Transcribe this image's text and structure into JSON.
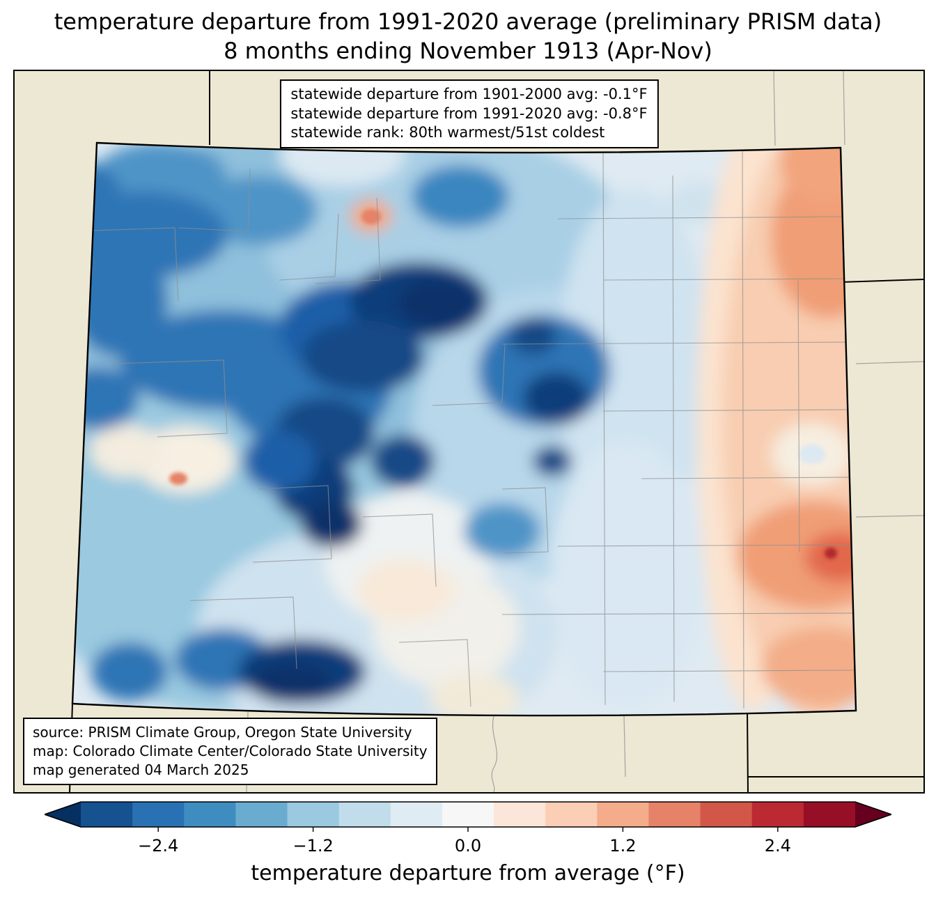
{
  "title": {
    "line1": "temperature departure from 1991-2020 average (preliminary PRISM data)",
    "line2": "8 months ending November 1913 (Apr-Nov)"
  },
  "stats_box": {
    "lines": [
      "statewide departure from 1901-2000 avg: -0.1°F",
      "statewide departure from 1991-2020 avg: -0.8°F",
      "statewide rank: 80th warmest/51st coldest"
    ]
  },
  "source_box": {
    "lines": [
      "source: PRISM Climate Group, Oregon State University",
      "map: Colorado Climate Center/Colorado State University",
      "map generated 04 March 2025"
    ]
  },
  "colorbar": {
    "label": "temperature departure from average (°F)",
    "range_f": [
      -3.0,
      3.0
    ],
    "tick_values": [
      -2.4,
      -1.2,
      0.0,
      1.2,
      2.4
    ],
    "tick_labels": [
      "−2.4",
      "−1.2",
      "0.0",
      "1.2",
      "2.4"
    ],
    "segment_colors": [
      "#165190",
      "#2971b2",
      "#3f8dc0",
      "#6aacd0",
      "#9ac9e0",
      "#c1ddeb",
      "#dfecf3",
      "#f7f7f7",
      "#fbe6d9",
      "#fbceb6",
      "#f5ac8b",
      "#e58268",
      "#d25749",
      "#bb2a33",
      "#960f27"
    ],
    "left_arrow_color": "#053061",
    "right_arrow_color": "#67001f"
  },
  "map": {
    "background_color": "#ece8d3",
    "base_fill_color": "#dfeaf2",
    "county_line_color": "#8f8f8f",
    "state_border_color": "#000000"
  }
}
